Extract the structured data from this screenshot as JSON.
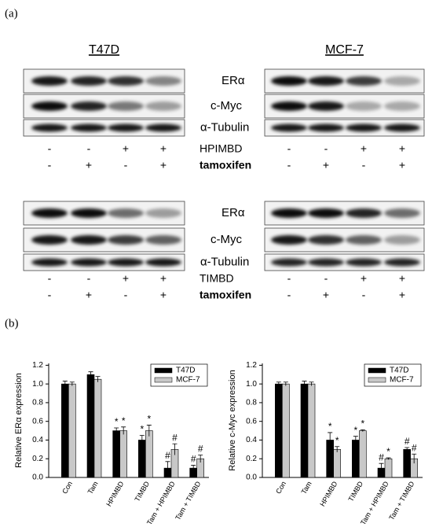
{
  "figure_a": {
    "label": "(a)",
    "cell_lines": [
      "T47D",
      "MCF-7"
    ],
    "blot_sets": [
      {
        "proteins": [
          "ERα",
          "c-Myc",
          "α-Tubulin"
        ],
        "treatments": [
          {
            "name": "HPIMBD",
            "signs": [
              "-",
              "-",
              "+",
              "+"
            ]
          },
          {
            "name": "tamoxifen",
            "signs": [
              "-",
              "+",
              "-",
              "+"
            ]
          }
        ]
      },
      {
        "proteins": [
          "ERα",
          "c-Myc",
          "α-Tubulin"
        ],
        "treatments": [
          {
            "name": "TIMBD",
            "signs": [
              "-",
              "-",
              "+",
              "+"
            ]
          },
          {
            "name": "tamoxifen",
            "signs": [
              "-",
              "+",
              "-",
              "+"
            ]
          }
        ]
      }
    ]
  },
  "figure_b": {
    "label": "(b)"
  },
  "chart_data": [
    {
      "type": "bar",
      "y_label": "Relative ERα expression",
      "categories": [
        "Con",
        "Tam",
        "HPIMBD",
        "TIMBD",
        "Tam + HPIMBD",
        "Tam + TIMBD"
      ],
      "series": [
        {
          "name": "T47D",
          "color": "#000000",
          "values": [
            1.0,
            1.1,
            0.5,
            0.4,
            0.1,
            0.1
          ],
          "errors": [
            0.03,
            0.03,
            0.03,
            0.05,
            0.07,
            0.03
          ],
          "markers": [
            null,
            null,
            "*",
            "*",
            "#",
            "#"
          ]
        },
        {
          "name": "MCF-7",
          "color": "#c8c8c8",
          "values": [
            1.0,
            1.05,
            0.5,
            0.5,
            0.3,
            0.2
          ],
          "errors": [
            0.02,
            0.03,
            0.04,
            0.06,
            0.06,
            0.04
          ],
          "markers": [
            null,
            null,
            "*",
            "*",
            "#",
            "#"
          ]
        }
      ],
      "ylim": [
        0,
        1.22
      ],
      "yticks": [
        {
          "value": 0,
          "label": "0.0"
        },
        {
          "value": 0.2,
          "label": "0.2"
        },
        {
          "value": 0.4,
          "label": "0.4"
        },
        {
          "value": 0.6,
          "label": "0.6"
        },
        {
          "value": 0.8,
          "label": "0.8"
        },
        {
          "value": 1,
          "label": "1.0"
        },
        {
          "value": 1.2,
          "label": "1.2"
        }
      ],
      "legend": "upper right"
    },
    {
      "type": "bar",
      "y_label": "Relative c-Myc expression",
      "categories": [
        "Con",
        "Tam",
        "HPIMBD",
        "TIMBD",
        "Tam + HPIMBD",
        "Tam + TIMBD"
      ],
      "series": [
        {
          "name": "T47D",
          "color": "#000000",
          "values": [
            1.0,
            1.0,
            0.4,
            0.4,
            0.1,
            0.3
          ],
          "errors": [
            0.02,
            0.03,
            0.08,
            0.04,
            0.05,
            0.02
          ],
          "markers": [
            null,
            null,
            "*",
            "*",
            "#",
            "#"
          ]
        },
        {
          "name": "MCF-7",
          "color": "#c8c8c8",
          "values": [
            1.0,
            1.0,
            0.3,
            0.5,
            0.2,
            0.2
          ],
          "errors": [
            0.02,
            0.02,
            0.03,
            0.01,
            0.01,
            0.05
          ],
          "markers": [
            null,
            null,
            "*",
            "*",
            "*",
            "#"
          ]
        }
      ],
      "ylim": [
        0,
        1.22
      ],
      "yticks": [
        {
          "value": 0,
          "label": "0.0"
        },
        {
          "value": 0.2,
          "label": "0.2"
        },
        {
          "value": 0.4,
          "label": "0.4"
        },
        {
          "value": 0.6,
          "label": "0.6"
        },
        {
          "value": 0.8,
          "label": "0.8"
        },
        {
          "value": 1,
          "label": "1.0"
        },
        {
          "value": 1.2,
          "label": "1.2"
        }
      ],
      "legend": "upper right"
    }
  ]
}
